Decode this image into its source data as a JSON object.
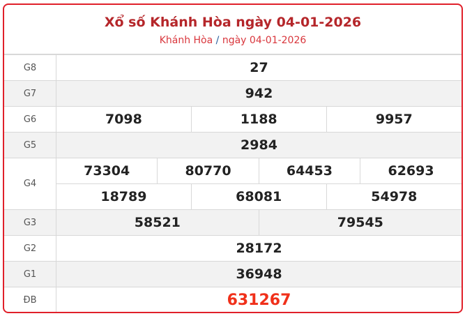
{
  "header": {
    "title": "Xổ số Khánh Hòa ngày 04-01-2026",
    "breadcrumb_province": "Khánh Hòa",
    "breadcrumb_sep": "/",
    "breadcrumb_date": "ngày 04-01-2026"
  },
  "prizes": {
    "g8": {
      "label": "G8",
      "numbers": [
        "27"
      ]
    },
    "g7": {
      "label": "G7",
      "numbers": [
        "942"
      ]
    },
    "g6": {
      "label": "G6",
      "numbers": [
        "7098",
        "1188",
        "9957"
      ]
    },
    "g5": {
      "label": "G5",
      "numbers": [
        "2984"
      ]
    },
    "g4": {
      "label": "G4",
      "numbers": [
        "73304",
        "80770",
        "64453",
        "62693",
        "18789",
        "68081",
        "54978"
      ]
    },
    "g3": {
      "label": "G3",
      "numbers": [
        "58521",
        "79545"
      ]
    },
    "g2": {
      "label": "G2",
      "numbers": [
        "28172"
      ]
    },
    "g1": {
      "label": "G1",
      "numbers": [
        "36948"
      ]
    },
    "db": {
      "label": "ĐB",
      "numbers": [
        "631267"
      ]
    }
  },
  "colors": {
    "border": "#e0202a",
    "title": "#b5262a",
    "special": "#f0301a"
  }
}
